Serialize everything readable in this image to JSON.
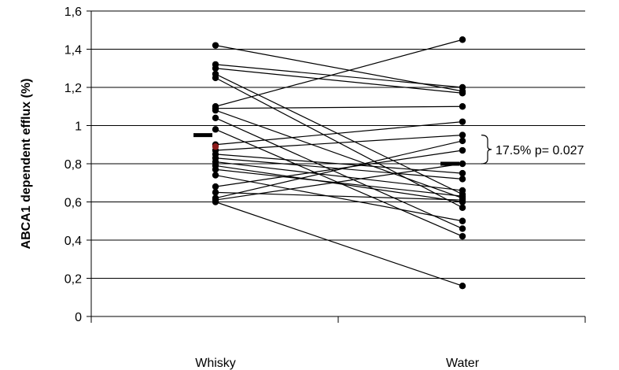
{
  "chart_data": {
    "type": "scatter",
    "ylabel": "ABCA1 dependent efflux (%)",
    "xlabel": "",
    "title": "",
    "categories": [
      "Whisky",
      "Water"
    ],
    "ylim": [
      0,
      1.6
    ],
    "yticks": [
      "0",
      "0,2",
      "0,4",
      "0,6",
      "0,8",
      "1",
      "1,2",
      "1,4",
      "1,6"
    ],
    "grid": true,
    "pairs": [
      [
        1.42,
        1.18
      ],
      [
        1.32,
        1.2
      ],
      [
        1.3,
        1.17
      ],
      [
        1.27,
        0.64
      ],
      [
        1.25,
        0.57
      ],
      [
        1.1,
        1.45
      ],
      [
        1.09,
        1.1
      ],
      [
        1.08,
        0.62
      ],
      [
        1.04,
        0.46
      ],
      [
        0.98,
        0.42
      ],
      [
        0.9,
        1.02
      ],
      [
        0.87,
        0.95
      ],
      [
        0.85,
        0.75
      ],
      [
        0.83,
        0.72
      ],
      [
        0.81,
        0.66
      ],
      [
        0.79,
        0.6
      ],
      [
        0.77,
        0.63
      ],
      [
        0.74,
        0.5
      ],
      [
        0.68,
        0.87
      ],
      [
        0.65,
        0.61
      ],
      [
        0.62,
        0.92
      ],
      [
        0.61,
        0.8
      ],
      [
        0.6,
        0.16
      ]
    ],
    "means": [
      0.95,
      0.8
    ],
    "highlight_point": {
      "group": 0,
      "value": 0.89,
      "color": "#8b1a1a"
    },
    "annotation": "17.5% p= 0.027"
  }
}
